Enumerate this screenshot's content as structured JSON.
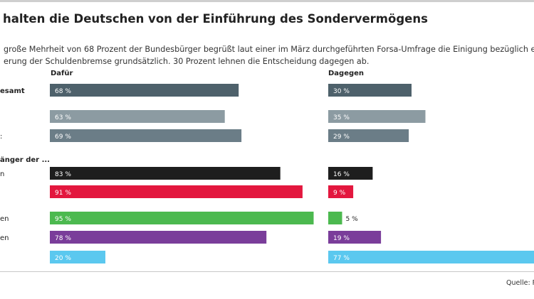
{
  "header": {
    "title": "halten die Deutschen von der Einführung des Sondervermögens",
    "subtitle_line1": "große Mehrheit von 68 Prozent der Bundesbürger begrüßt laut einer im März durchgeführten Forsa-Umfrage die Einigung bezüglich eine",
    "subtitle_line2": "erung der Schuldenbremse grundsätzlich. 30 Prozent lehnen die Entscheidung dagegen ab."
  },
  "footer": {
    "source": "Quelle: F"
  },
  "chart_data": {
    "type": "bar",
    "orientation": "horizontal",
    "columns": [
      "Dafür",
      "Dagegen"
    ],
    "section_label": "änger der ...",
    "value_unit": "%",
    "rows": [
      {
        "label": "esamt",
        "dafuer": 68,
        "dagegen": 30,
        "color_dafuer": "#4e616b",
        "color_dagegen": "#4e616b",
        "bold": true,
        "text_dark": false
      },
      {
        "label": "",
        "dafuer": 63,
        "dagegen": 35,
        "color_dafuer": "#8c9ba2",
        "color_dagegen": "#8c9ba2",
        "bold": false,
        "text_dark": false
      },
      {
        "label": ":",
        "dafuer": 69,
        "dagegen": 29,
        "color_dafuer": "#6b7d87",
        "color_dagegen": "#6b7d87",
        "bold": false,
        "text_dark": false
      },
      {
        "label": "n",
        "dafuer": 83,
        "dagegen": 16,
        "color_dafuer": "#1e1e1e",
        "color_dagegen": "#1e1e1e",
        "bold": false,
        "text_dark": false
      },
      {
        "label": "",
        "dafuer": 91,
        "dagegen": 9,
        "color_dafuer": "#e3173e",
        "color_dagegen": "#e3173e",
        "bold": false,
        "text_dark": false
      },
      {
        "label": "en",
        "dafuer": 95,
        "dagegen": 5,
        "color_dafuer": "#4cb94f",
        "color_dagegen": "#4cb94f",
        "bold": false,
        "text_dark": true
      },
      {
        "label": "en",
        "dafuer": 78,
        "dagegen": 19,
        "color_dafuer": "#7a3d9a",
        "color_dagegen": "#7a3d9a",
        "bold": false,
        "text_dark": false
      },
      {
        "label": "",
        "dafuer": 20,
        "dagegen": 77,
        "color_dafuer": "#5bc8ef",
        "color_dagegen": "#5bc8ef",
        "bold": false,
        "text_dark": false
      }
    ]
  }
}
